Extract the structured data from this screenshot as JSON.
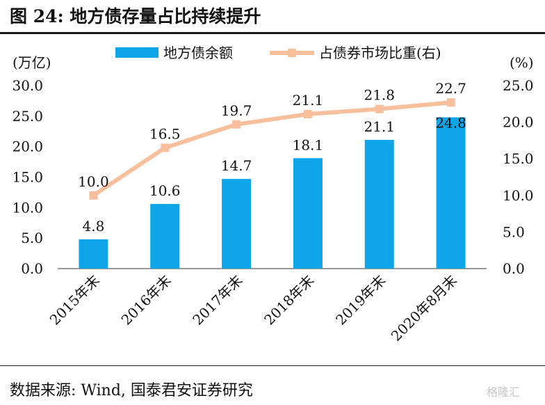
{
  "figure": {
    "title": "图 24: 地方债存量占比持续提升",
    "source": "数据来源: Wind, 国泰君安证券研究",
    "watermark": "格隆汇"
  },
  "chart_data": {
    "type": "bar",
    "categories": [
      "2015年末",
      "2016年末",
      "2017年末",
      "2018年末",
      "2019年末",
      "2020年8月末"
    ],
    "series": [
      {
        "name": "地方债余额",
        "type": "bar",
        "axis": "left",
        "color": "#0ea5e9",
        "values": [
          4.8,
          10.6,
          14.7,
          18.1,
          21.1,
          24.8
        ]
      },
      {
        "name": "占债券市场比重(右)",
        "type": "line",
        "axis": "right",
        "color": "#f8bf9c",
        "values": [
          10.0,
          16.5,
          19.7,
          21.1,
          21.8,
          22.7
        ]
      }
    ],
    "y_left": {
      "unit": "(万亿)",
      "ylim": [
        0,
        30
      ],
      "ticks": [
        "0.0",
        "5.0",
        "10.0",
        "15.0",
        "20.0",
        "25.0",
        "30.0"
      ]
    },
    "y_right": {
      "unit": "(%)",
      "ylim": [
        0,
        25
      ],
      "ticks": [
        "0.0",
        "5.0",
        "10.0",
        "15.0",
        "20.0",
        "25.0"
      ]
    },
    "legend": "top",
    "grid": false
  }
}
